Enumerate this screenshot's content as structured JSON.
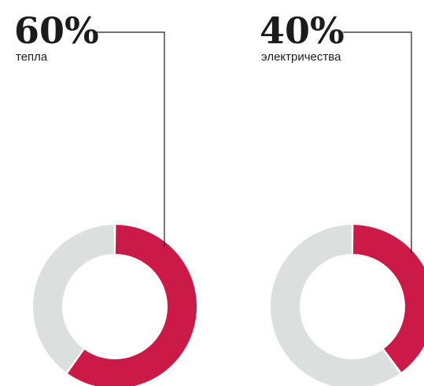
{
  "chart_data": [
    {
      "type": "pie",
      "categories": [
        "тепла",
        ""
      ],
      "values": [
        60,
        40
      ],
      "label": "60%",
      "caption": "тепла",
      "colors": [
        "#cc1a48",
        "#dbe0de"
      ]
    },
    {
      "type": "pie",
      "categories": [
        "электричества",
        ""
      ],
      "values": [
        40,
        60
      ],
      "label": "40%",
      "caption": "электричества",
      "colors": [
        "#cc1a48",
        "#dbe0de"
      ]
    }
  ]
}
